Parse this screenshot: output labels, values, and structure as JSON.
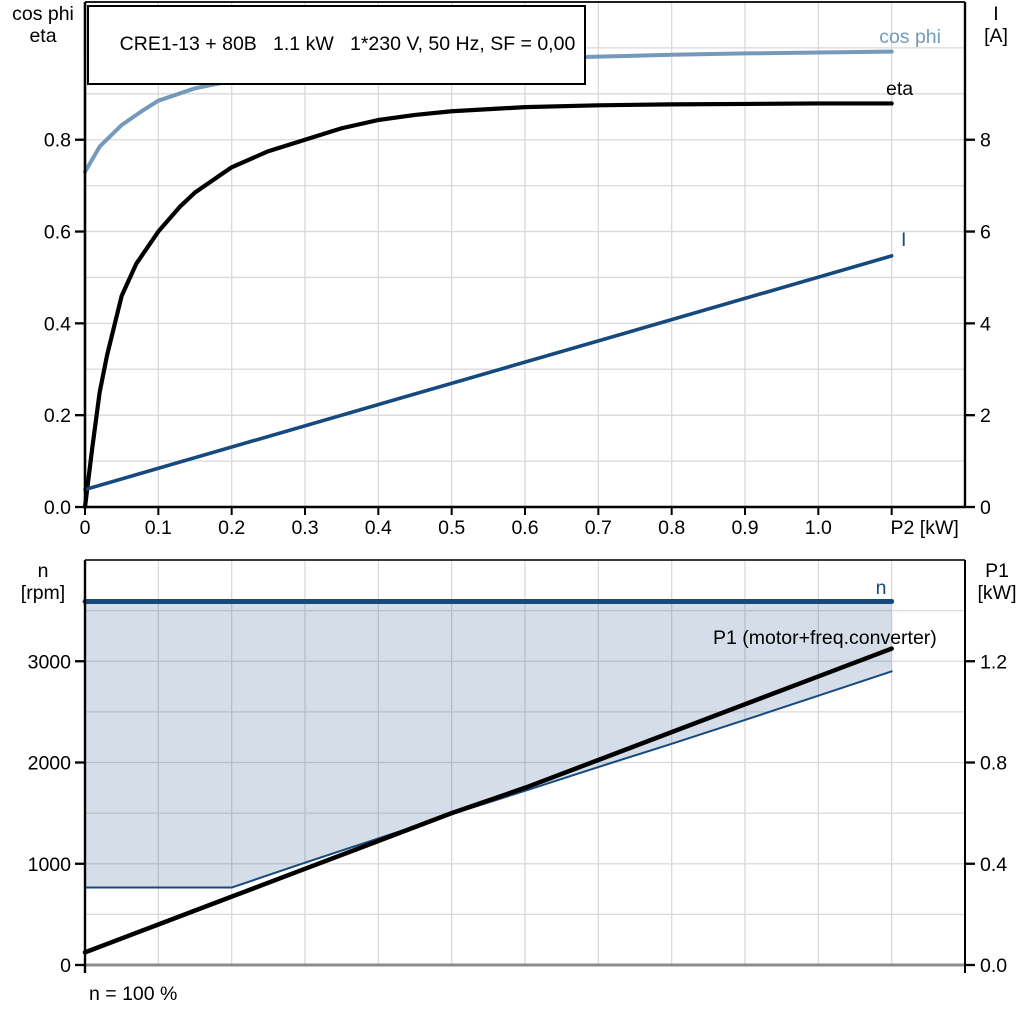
{
  "colors": {
    "cos_phi": "#7599BB",
    "dark_blue": "#16497D",
    "black": "#000000",
    "grid": "#D9D9D9",
    "area_fill": "#17497D",
    "area_opacity": 0.18,
    "axis_grey": "#8C8C8C",
    "frame_black": "#000000"
  },
  "chart_data": [
    {
      "id": "top-performance-chart",
      "type": "line",
      "title": "CRE1-13 + 80B   1.1 kW   1*230 V, 50 Hz, SF = 0,00",
      "x": {
        "label": "P2 [kW]",
        "min": 0,
        "max": 1.2,
        "grid_step": 0.1,
        "tick_mark_max": 1.1,
        "axis_label_at": 1.145,
        "ticks": [
          {
            "v": 0,
            "t": "0"
          },
          {
            "v": 0.1,
            "t": "0.1"
          },
          {
            "v": 0.2,
            "t": "0.2"
          },
          {
            "v": 0.3,
            "t": "0.3"
          },
          {
            "v": 0.4,
            "t": "0.4"
          },
          {
            "v": 0.5,
            "t": "0.5"
          },
          {
            "v": 0.6,
            "t": "0.6"
          },
          {
            "v": 0.7,
            "t": "0.7"
          },
          {
            "v": 0.8,
            "t": "0.8"
          },
          {
            "v": 0.9,
            "t": "0.9"
          },
          {
            "v": 1.0,
            "t": "1.0"
          }
        ]
      },
      "y_left": {
        "header": [
          "cos phi",
          "eta"
        ],
        "min": 0,
        "max": 1.1,
        "grid_step": 0.1,
        "ticks": [
          {
            "v": 0,
            "t": "0.0"
          },
          {
            "v": 0.2,
            "t": "0.2"
          },
          {
            "v": 0.4,
            "t": "0.4"
          },
          {
            "v": 0.6,
            "t": "0.6"
          },
          {
            "v": 0.8,
            "t": "0.8"
          }
        ]
      },
      "y_right": {
        "header": [
          "I",
          "[A]"
        ],
        "min": 0,
        "max": 11,
        "grid_step": 1,
        "ticks": [
          {
            "v": 0,
            "t": "0"
          },
          {
            "v": 2,
            "t": "2"
          },
          {
            "v": 4,
            "t": "4"
          },
          {
            "v": 6,
            "t": "6"
          },
          {
            "v": 8,
            "t": "8"
          }
        ]
      },
      "series": [
        {
          "name": "cos phi",
          "label": "cos phi",
          "axis": "left",
          "color_key": "cos_phi",
          "width": 4,
          "points": [
            [
              0,
              0.73
            ],
            [
              0.02,
              0.785
            ],
            [
              0.05,
              0.832
            ],
            [
              0.08,
              0.865
            ],
            [
              0.1,
              0.885
            ],
            [
              0.15,
              0.912
            ],
            [
              0.2,
              0.928
            ],
            [
              0.25,
              0.94
            ],
            [
              0.3,
              0.949
            ],
            [
              0.35,
              0.957
            ],
            [
              0.4,
              0.963
            ],
            [
              0.5,
              0.971
            ],
            [
              0.6,
              0.977
            ],
            [
              0.7,
              0.981
            ],
            [
              0.8,
              0.985
            ],
            [
              0.9,
              0.988
            ],
            [
              1.0,
              0.99
            ],
            [
              1.1,
              0.992
            ]
          ]
        },
        {
          "name": "eta",
          "label": "eta",
          "axis": "left",
          "color_key": "black",
          "width": 4.2,
          "points": [
            [
              0,
              0.0
            ],
            [
              0.01,
              0.13
            ],
            [
              0.02,
              0.25
            ],
            [
              0.03,
              0.33
            ],
            [
              0.05,
              0.46
            ],
            [
              0.07,
              0.53
            ],
            [
              0.1,
              0.6
            ],
            [
              0.13,
              0.655
            ],
            [
              0.15,
              0.685
            ],
            [
              0.2,
              0.74
            ],
            [
              0.25,
              0.775
            ],
            [
              0.3,
              0.8
            ],
            [
              0.35,
              0.825
            ],
            [
              0.4,
              0.843
            ],
            [
              0.45,
              0.854
            ],
            [
              0.5,
              0.862
            ],
            [
              0.6,
              0.871
            ],
            [
              0.7,
              0.875
            ],
            [
              0.8,
              0.877
            ],
            [
              0.9,
              0.878
            ],
            [
              1.0,
              0.879
            ],
            [
              1.1,
              0.879
            ]
          ]
        },
        {
          "name": "I",
          "label": "I",
          "axis": "right",
          "color_key": "dark_blue",
          "width": 3.6,
          "points": [
            [
              0,
              0.38
            ],
            [
              1.1,
              5.47
            ]
          ]
        }
      ]
    },
    {
      "id": "bottom-speed-power-chart",
      "type": "line+area",
      "footnote": "n = 100 %",
      "x": {
        "label": "",
        "min": 0,
        "max": 1.2,
        "grid_step": 0.1,
        "tick_mark_max": 0,
        "axis_label_at": 0,
        "ticks": []
      },
      "y_left": {
        "header": [
          "n",
          "[rpm]"
        ],
        "min": 0,
        "max": 4000,
        "grid_step": 500,
        "ticks": [
          {
            "v": 0,
            "t": "0"
          },
          {
            "v": 1000,
            "t": "1000"
          },
          {
            "v": 2000,
            "t": "2000"
          },
          {
            "v": 3000,
            "t": "3000"
          }
        ]
      },
      "y_right": {
        "header": [
          "P1",
          "[kW]"
        ],
        "min": 0,
        "max": 1.6,
        "grid_step": 0.2,
        "ticks": [
          {
            "v": 0,
            "t": "0.0"
          },
          {
            "v": 0.4,
            "t": "0.4"
          },
          {
            "v": 0.8,
            "t": "0.8"
          },
          {
            "v": 1.2,
            "t": "1.2"
          }
        ]
      },
      "area": {
        "between": [
          "n",
          "n min"
        ],
        "fill_key": "area_fill",
        "opacity": 0.18
      },
      "series": [
        {
          "name": "n",
          "label": "n",
          "axis": "left",
          "color_key": "dark_blue",
          "width": 5,
          "points": [
            [
              0,
              3590
            ],
            [
              1.1,
              3590
            ]
          ]
        },
        {
          "name": "n min",
          "label": "",
          "axis": "left",
          "color_key": "dark_blue",
          "width": 2,
          "points": [
            [
              0,
              765
            ],
            [
              0.2,
              765
            ],
            [
              0.3,
              1010
            ],
            [
              0.4,
              1250
            ],
            [
              0.5,
              1490
            ],
            [
              0.6,
              1720
            ],
            [
              0.7,
              1955
            ],
            [
              0.8,
              2185
            ],
            [
              0.9,
              2420
            ],
            [
              1.0,
              2660
            ],
            [
              1.1,
              2900
            ]
          ]
        },
        {
          "name": "P1",
          "label": "P1 (motor+freq.converter)",
          "axis": "right",
          "color_key": "black",
          "width": 4.5,
          "points": [
            [
              0,
              0.05
            ],
            [
              0.1,
              0.16
            ],
            [
              0.2,
              0.27
            ],
            [
              0.3,
              0.38
            ],
            [
              0.4,
              0.49
            ],
            [
              0.5,
              0.6
            ],
            [
              0.6,
              0.7
            ],
            [
              0.7,
              0.81
            ],
            [
              0.8,
              0.92
            ],
            [
              0.9,
              1.03
            ],
            [
              1.0,
              1.14
            ],
            [
              1.1,
              1.25
            ]
          ]
        }
      ]
    }
  ]
}
